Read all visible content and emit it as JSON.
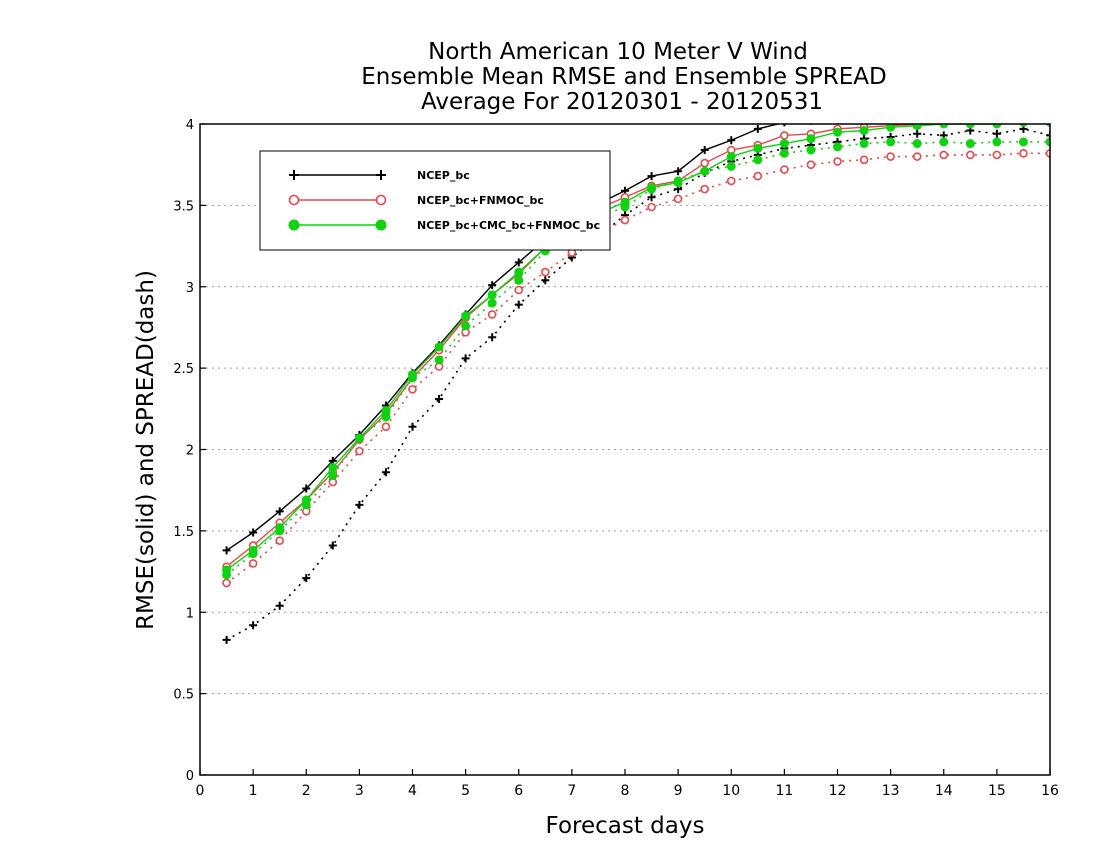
{
  "chart_data": {
    "type": "line",
    "title_lines": [
      "North American 10 Meter V Wind",
      "Ensemble Mean RMSE and Ensemble SPREAD",
      "Average For 20120301 - 20120531"
    ],
    "xlabel": "Forecast days",
    "ylabel": "RMSE(solid) and SPREAD(dash)",
    "xlim": [
      0,
      16
    ],
    "ylim": [
      0,
      4
    ],
    "x_ticks": [
      0,
      1,
      2,
      3,
      4,
      5,
      6,
      7,
      8,
      9,
      10,
      11,
      12,
      13,
      14,
      15,
      16
    ],
    "y_ticks": [
      0,
      0.5,
      1,
      1.5,
      2,
      2.5,
      3,
      3.5,
      4
    ],
    "y_tick_labels": [
      "0",
      "0.5",
      "1",
      "1.5",
      "2",
      "2.5",
      "3",
      "3.5",
      "4"
    ],
    "grid": "horizontal dotted",
    "legend_position": "top-left",
    "x": [
      0.5,
      1,
      1.5,
      2,
      2.5,
      3,
      3.5,
      4,
      4.5,
      5,
      5.5,
      6,
      6.5,
      7,
      7.5,
      8,
      8.5,
      9,
      9.5,
      10,
      10.5,
      11,
      11.5,
      12,
      12.5,
      13,
      13.5,
      14,
      14.5,
      15,
      15.5,
      16
    ],
    "series": [
      {
        "name": "NCEP_bc",
        "color": "#000000",
        "marker": "plus",
        "rmse": [
          1.38,
          1.49,
          1.62,
          1.76,
          1.93,
          2.09,
          2.27,
          2.47,
          2.64,
          2.83,
          3.01,
          3.15,
          3.29,
          3.43,
          3.51,
          3.59,
          3.68,
          3.71,
          3.84,
          3.9,
          3.97,
          4.01,
          4.02,
          4.03,
          4.04,
          4.04,
          4.05,
          4.05,
          4.06,
          4.06,
          4.06,
          4.07
        ],
        "spread": [
          0.83,
          0.92,
          1.04,
          1.21,
          1.41,
          1.66,
          1.86,
          2.14,
          2.31,
          2.56,
          2.69,
          2.89,
          3.04,
          3.18,
          3.31,
          3.44,
          3.55,
          3.6,
          3.7,
          3.77,
          3.81,
          3.85,
          3.87,
          3.89,
          3.91,
          3.92,
          3.94,
          3.93,
          3.96,
          3.94,
          3.97,
          3.93
        ]
      },
      {
        "name": "NCEP_bc+FNMOC_bc",
        "color": "#e8484b",
        "marker": "open-circle",
        "rmse": [
          1.28,
          1.41,
          1.55,
          1.69,
          1.86,
          2.06,
          2.22,
          2.44,
          2.61,
          2.81,
          2.95,
          3.08,
          3.24,
          3.39,
          3.48,
          3.55,
          3.62,
          3.65,
          3.76,
          3.84,
          3.87,
          3.93,
          3.94,
          3.97,
          3.98,
          3.99,
          4.0,
          4.01,
          4.01,
          4.01,
          4.02,
          4.02
        ],
        "spread": [
          1.18,
          1.3,
          1.44,
          1.62,
          1.8,
          1.99,
          2.14,
          2.37,
          2.51,
          2.72,
          2.83,
          2.98,
          3.09,
          3.21,
          3.33,
          3.41,
          3.49,
          3.54,
          3.6,
          3.65,
          3.68,
          3.72,
          3.75,
          3.77,
          3.78,
          3.8,
          3.8,
          3.81,
          3.81,
          3.81,
          3.82,
          3.82
        ]
      },
      {
        "name": "NCEP_bc+CMC_bc+FNMOC_bc",
        "color": "#10d210",
        "marker": "filled-circle",
        "rmse": [
          1.26,
          1.38,
          1.52,
          1.69,
          1.89,
          2.07,
          2.24,
          2.46,
          2.63,
          2.82,
          2.95,
          3.09,
          3.24,
          3.37,
          3.45,
          3.52,
          3.61,
          3.64,
          3.71,
          3.8,
          3.85,
          3.88,
          3.91,
          3.95,
          3.96,
          3.98,
          3.99,
          4.0,
          4.0,
          4.0,
          4.01,
          4.01
        ],
        "spread": [
          1.23,
          1.36,
          1.5,
          1.66,
          1.84,
          2.07,
          2.2,
          2.44,
          2.55,
          2.76,
          2.9,
          3.04,
          3.22,
          3.35,
          3.43,
          3.49,
          3.6,
          3.65,
          3.71,
          3.74,
          3.78,
          3.82,
          3.84,
          3.86,
          3.88,
          3.89,
          3.88,
          3.89,
          3.88,
          3.89,
          3.89,
          3.89
        ]
      }
    ]
  }
}
